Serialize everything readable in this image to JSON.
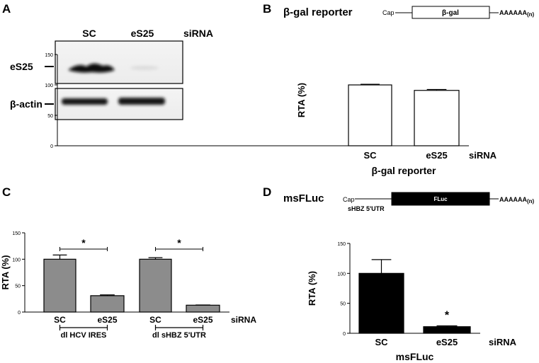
{
  "panels": {
    "A": {
      "label": "A",
      "lane_labels": [
        "SC",
        "eS25"
      ],
      "condition_label": "siRNA",
      "rows": [
        {
          "label": "eS25",
          "band_intensity": [
            1.0,
            0.06
          ]
        },
        {
          "label": "β-actin",
          "band_intensity": [
            1.0,
            1.0
          ]
        }
      ]
    },
    "B": {
      "label": "B",
      "construct_title": "β-gal reporter",
      "cap": "Cap",
      "gene": "β-gal",
      "polyA": "AAAAAA",
      "polyA_sub": "(n)"
    },
    "C": {
      "label": "C"
    },
    "D": {
      "label": "D",
      "construct_title": "msFLuc",
      "cap": "Cap",
      "gene": "FLuc",
      "utr": "sHBZ 5'UTR",
      "polyA": "AAAAAA",
      "polyA_sub": "(n)"
    }
  },
  "chart_data": [
    {
      "id": "B",
      "type": "bar",
      "categories": [
        "SC",
        "eS25"
      ],
      "values": [
        100,
        91
      ],
      "errors": [
        1,
        1.5
      ],
      "bar_color": "#ffffff",
      "ylabel": "RTA (%)",
      "xlabel": "β-gal reporter",
      "condition_label": "siRNA",
      "ylim": [
        0,
        150
      ],
      "yticks": [
        0,
        50,
        100,
        150
      ]
    },
    {
      "id": "C",
      "type": "bar",
      "categories": [
        "SC",
        "eS25",
        "SC",
        "eS25"
      ],
      "values": [
        100,
        31,
        100,
        13
      ],
      "errors": [
        8,
        1.5,
        3,
        0.5
      ],
      "bar_color": "#8c8c8c",
      "ylabel": "RTA (%)",
      "condition_label": "siRNA",
      "groups": [
        "dl HCV IRES",
        "dl sHBZ 5'UTR"
      ],
      "significance": [
        "*",
        "*"
      ],
      "ylim": [
        0,
        150
      ],
      "yticks": [
        0,
        50,
        100,
        150
      ]
    },
    {
      "id": "D",
      "type": "bar",
      "categories": [
        "SC",
        "eS25"
      ],
      "values": [
        100,
        11
      ],
      "errors": [
        23,
        1.5
      ],
      "bar_color": "#000000",
      "ylabel": "RTA (%)",
      "xlabel": "msFLuc",
      "condition_label": "siRNA",
      "significance": [
        "*"
      ],
      "ylim": [
        0,
        150
      ],
      "yticks": [
        0,
        50,
        100,
        150
      ]
    }
  ]
}
